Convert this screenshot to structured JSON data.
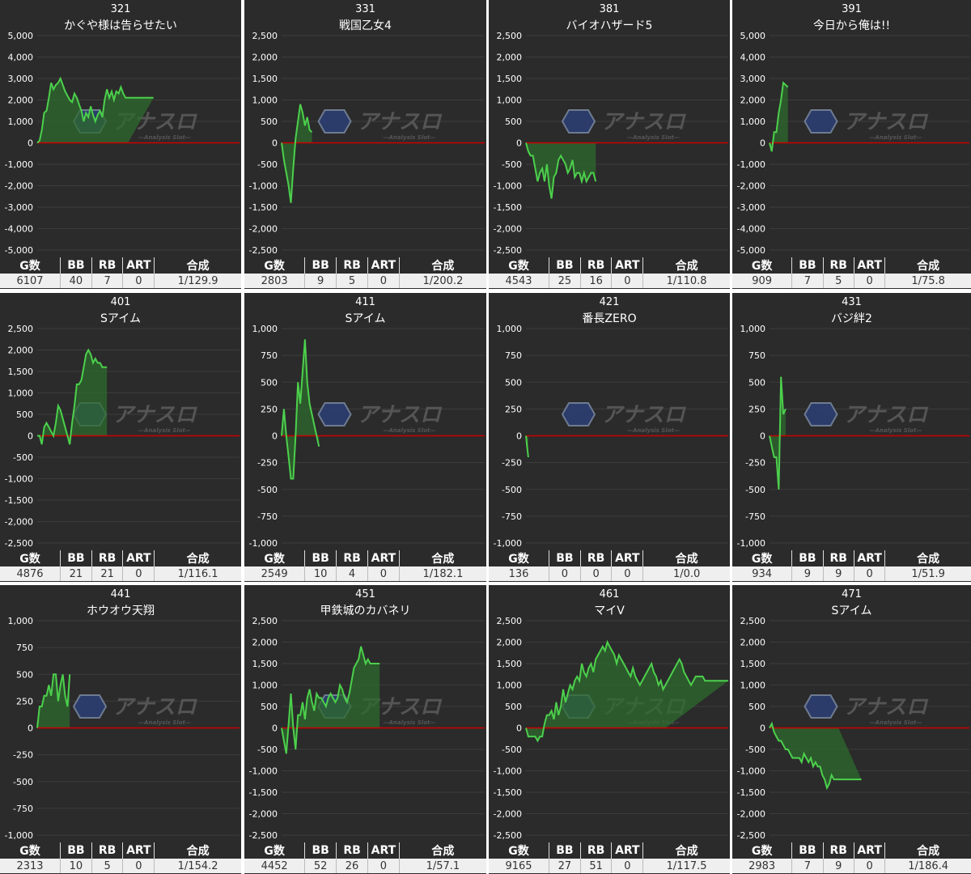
{
  "stat_headers": [
    "G数",
    "BB",
    "RB",
    "ART",
    "合成"
  ],
  "watermark": {
    "main": "アナスロ",
    "sub": "—Analysis Slot—"
  },
  "colors": {
    "panel_bg": "#2b2b2b",
    "line": "#4cd04c",
    "fill": "#2e6b2e",
    "zero_line": "#cc0000",
    "grid": "#3c3c3c"
  },
  "chart_data": [
    {
      "type": "area",
      "number": "321",
      "title": "かぐや様は告らせたい",
      "ylim": [
        -5000,
        5000
      ],
      "yticks": [
        "5,000",
        "4,000",
        "3,000",
        "2,000",
        "1,000",
        "0",
        "-1,000",
        "-2,000",
        "-3,000",
        "-4,000",
        "-5,000"
      ],
      "x": [
        0,
        2,
        4,
        6,
        8,
        10,
        12,
        14,
        16,
        18,
        20,
        22,
        24,
        26,
        28,
        30,
        32,
        34,
        36,
        38,
        40,
        42,
        44,
        46,
        48,
        50,
        52,
        54,
        56,
        58,
        60,
        62,
        64,
        66,
        68,
        70,
        72,
        74,
        76,
        78,
        80,
        82,
        84,
        86,
        88,
        90,
        92,
        94,
        96,
        98,
        100
      ],
      "values": [
        0,
        100,
        600,
        1400,
        1500,
        2100,
        2800,
        2500,
        2700,
        2800,
        3000,
        2700,
        2400,
        2200,
        2000,
        1900,
        2300,
        2100,
        1800,
        1500,
        1000,
        1400,
        1200,
        1700,
        1300,
        1000,
        1300,
        1500,
        1200,
        2000,
        2500,
        2100,
        2400,
        2000,
        2400,
        2300,
        2600,
        2300,
        2100,
        2100,
        2100,
        2100,
        2100,
        2100,
        2100,
        2100,
        2100,
        2100,
        2100,
        2100,
        2100
      ],
      "end_x": 78,
      "stats": {
        "games": "6107",
        "bb": "40",
        "rb": "7",
        "art": "0",
        "combined": "1/129.9"
      }
    },
    {
      "type": "area",
      "number": "331",
      "title": "戦国乙女4",
      "ylim": [
        -2500,
        2500
      ],
      "yticks": [
        "2,500",
        "2,000",
        "1,500",
        "1,000",
        "500",
        "0",
        "-500",
        "-1,000",
        "-1,500",
        "-2,000",
        "-2,500"
      ],
      "x": [
        0,
        2,
        4,
        6,
        8,
        10,
        12,
        14,
        16,
        18,
        20,
        22,
        24,
        26
      ],
      "values": [
        0,
        -400,
        -700,
        -1000,
        -1400,
        -600,
        100,
        500,
        900,
        700,
        400,
        600,
        300,
        250
      ],
      "end_x": 26,
      "stats": {
        "games": "2803",
        "bb": "9",
        "rb": "5",
        "art": "0",
        "combined": "1/200.2"
      }
    },
    {
      "type": "area",
      "number": "381",
      "title": "バイオハザード5",
      "ylim": [
        -2500,
        2500
      ],
      "yticks": [
        "2,500",
        "2,000",
        "1,500",
        "1,000",
        "500",
        "0",
        "-500",
        "-1,000",
        "-1,500",
        "-2,000",
        "-2,500"
      ],
      "x": [
        0,
        2,
        4,
        6,
        8,
        10,
        12,
        14,
        16,
        18,
        20,
        22,
        24,
        26,
        28,
        30,
        32,
        34,
        36,
        38,
        40,
        42,
        44,
        46,
        48,
        50,
        52,
        54,
        56,
        58,
        60
      ],
      "values": [
        0,
        -200,
        -300,
        -300,
        -600,
        -900,
        -700,
        -600,
        -900,
        -500,
        -1000,
        -1300,
        -800,
        -700,
        -400,
        -300,
        -400,
        -500,
        -700,
        -600,
        -400,
        -800,
        -700,
        -700,
        -900,
        -700,
        -900,
        -800,
        -700,
        -700,
        -900
      ],
      "end_x": 60,
      "stats": {
        "games": "4543",
        "bb": "25",
        "rb": "16",
        "art": "0",
        "combined": "1/110.8"
      }
    },
    {
      "type": "area",
      "number": "391",
      "title": "今日から俺は!!",
      "ylim": [
        -5000,
        5000
      ],
      "yticks": [
        "5,000",
        "4,000",
        "3,000",
        "2,000",
        "1,000",
        "0",
        "-1,000",
        "-2,000",
        "-3,000",
        "-4,000",
        "-5,000"
      ],
      "x": [
        0,
        2,
        4,
        6,
        8,
        10,
        12,
        14,
        16
      ],
      "values": [
        0,
        -400,
        500,
        500,
        1400,
        2000,
        2800,
        2700,
        2600
      ],
      "end_x": 16,
      "stats": {
        "games": "909",
        "bb": "7",
        "rb": "5",
        "art": "0",
        "combined": "1/75.8"
      }
    },
    {
      "type": "area",
      "number": "401",
      "title": "Sアイム",
      "ylim": [
        -2500,
        2500
      ],
      "yticks": [
        "2,500",
        "2,000",
        "1,500",
        "1,000",
        "500",
        "0",
        "-500",
        "-1,000",
        "-1,500",
        "-2,000",
        "-2,500"
      ],
      "x": [
        0,
        2,
        4,
        6,
        8,
        10,
        12,
        14,
        16,
        18,
        20,
        22,
        24,
        26,
        28,
        30,
        32,
        34,
        36,
        38,
        40,
        42,
        44,
        46,
        48,
        50,
        52,
        54,
        56,
        58,
        60
      ],
      "values": [
        0,
        0,
        -200,
        200,
        300,
        200,
        100,
        0,
        300,
        700,
        600,
        400,
        200,
        0,
        -200,
        300,
        700,
        1200,
        1200,
        1300,
        1600,
        1900,
        2000,
        1900,
        1700,
        1800,
        1700,
        1700,
        1600,
        1600,
        1600
      ],
      "end_x": 60,
      "stats": {
        "games": "4876",
        "bb": "21",
        "rb": "21",
        "art": "0",
        "combined": "1/116.1"
      }
    },
    {
      "type": "area",
      "number": "411",
      "title": "Sアイム",
      "ylim": [
        -1000,
        1000
      ],
      "yticks": [
        "1,000",
        "750",
        "500",
        "250",
        "0",
        "-250",
        "-500",
        "-750",
        "-1,000"
      ],
      "x": [
        0,
        2,
        4,
        6,
        8,
        10,
        12,
        14,
        16,
        18,
        20,
        22,
        24,
        26,
        28,
        30,
        32
      ],
      "values": [
        0,
        250,
        0,
        -200,
        -400,
        -400,
        0,
        500,
        300,
        600,
        900,
        500,
        300,
        200,
        100,
        0,
        -100
      ],
      "end_x": 32,
      "stats": {
        "games": "2549",
        "bb": "10",
        "rb": "4",
        "art": "0",
        "combined": "1/182.1"
      }
    },
    {
      "type": "area",
      "number": "421",
      "title": "番長ZERO",
      "ylim": [
        -1000,
        1000
      ],
      "yticks": [
        "1,000",
        "750",
        "500",
        "250",
        "0",
        "-250",
        "-500",
        "-750",
        "-1,000"
      ],
      "x": [
        0,
        1,
        2
      ],
      "values": [
        0,
        -100,
        -200
      ],
      "end_x": 2,
      "stats": {
        "games": "136",
        "bb": "0",
        "rb": "0",
        "art": "0",
        "combined": "1/0.0"
      }
    },
    {
      "type": "area",
      "number": "431",
      "title": "バジ絆2",
      "ylim": [
        -1000,
        1000
      ],
      "yticks": [
        "1,000",
        "750",
        "500",
        "250",
        "0",
        "-250",
        "-500",
        "-750",
        "-1,000"
      ],
      "x": [
        0,
        2,
        4,
        6,
        8,
        10,
        12,
        14
      ],
      "values": [
        0,
        -100,
        -200,
        -200,
        -500,
        550,
        200,
        250
      ],
      "end_x": 14,
      "stats": {
        "games": "934",
        "bb": "9",
        "rb": "9",
        "art": "0",
        "combined": "1/51.9"
      }
    },
    {
      "type": "area",
      "number": "441",
      "title": "ホウオウ天翔",
      "ylim": [
        -1000,
        1000
      ],
      "yticks": [
        "1,000",
        "750",
        "500",
        "250",
        "0",
        "-250",
        "-500",
        "-750",
        "-1,000"
      ],
      "x": [
        0,
        2,
        4,
        6,
        8,
        10,
        12,
        14,
        16,
        18,
        20,
        22,
        24,
        26,
        28
      ],
      "values": [
        0,
        200,
        200,
        300,
        300,
        400,
        300,
        500,
        500,
        250,
        400,
        500,
        300,
        200,
        500
      ],
      "end_x": 28,
      "stats": {
        "games": "2313",
        "bb": "10",
        "rb": "5",
        "art": "0",
        "combined": "1/154.2"
      }
    },
    {
      "type": "area",
      "number": "451",
      "title": "甲鉄城のカバネリ",
      "ylim": [
        -2500,
        2500
      ],
      "yticks": [
        "2,500",
        "2,000",
        "1,500",
        "1,000",
        "500",
        "0",
        "-500",
        "-1,000",
        "-1,500",
        "-2,000",
        "-2,500"
      ],
      "x": [
        0,
        2,
        4,
        6,
        8,
        10,
        12,
        14,
        16,
        18,
        20,
        22,
        24,
        26,
        28,
        30,
        32,
        34,
        36,
        38,
        40,
        42,
        44,
        46,
        48,
        50,
        52,
        54,
        56,
        58,
        60,
        62,
        64,
        66,
        68,
        70,
        72,
        74,
        76,
        78,
        80,
        82,
        84
      ],
      "values": [
        0,
        -300,
        -600,
        100,
        800,
        0,
        -500,
        300,
        300,
        600,
        200,
        700,
        900,
        600,
        400,
        800,
        700,
        700,
        600,
        500,
        700,
        800,
        700,
        600,
        700,
        1000,
        900,
        700,
        600,
        800,
        1100,
        1400,
        1500,
        1600,
        1900,
        1700,
        1500,
        1600,
        1500,
        1500,
        1500,
        1500,
        1500
      ],
      "end_x": 84,
      "stats": {
        "games": "4452",
        "bb": "52",
        "rb": "26",
        "art": "0",
        "combined": "1/57.1"
      }
    },
    {
      "type": "area",
      "number": "461",
      "title": "マイV",
      "ylim": [
        -2500,
        2500
      ],
      "yticks": [
        "2,500",
        "2,000",
        "1,500",
        "1,000",
        "500",
        "0",
        "-500",
        "-1,000",
        "-1,500",
        "-2,000",
        "-2,500"
      ],
      "x": [
        0,
        2,
        4,
        6,
        8,
        10,
        12,
        14,
        16,
        18,
        20,
        22,
        24,
        26,
        28,
        30,
        32,
        34,
        36,
        38,
        40,
        42,
        44,
        46,
        48,
        50,
        52,
        54,
        56,
        58,
        60,
        62,
        64,
        66,
        68,
        70,
        72,
        74,
        76,
        78,
        80,
        82,
        84,
        86,
        88,
        90,
        92,
        94,
        96,
        98,
        100,
        102,
        104,
        106,
        108,
        110,
        112,
        114,
        116,
        118,
        120,
        122,
        124,
        126,
        128,
        130,
        132,
        134,
        136,
        138,
        140,
        142,
        144,
        146,
        148,
        150,
        152,
        154,
        156,
        158,
        160,
        162,
        164,
        166,
        168,
        170,
        172,
        174
      ],
      "values": [
        0,
        -200,
        -200,
        -200,
        -200,
        -300,
        -200,
        -200,
        100,
        300,
        300,
        400,
        200,
        600,
        300,
        500,
        900,
        600,
        800,
        1000,
        900,
        1100,
        1200,
        1100,
        1500,
        1300,
        1200,
        1400,
        1500,
        1300,
        1600,
        1700,
        1800,
        1900,
        1800,
        2000,
        1900,
        1800,
        1700,
        1500,
        1700,
        1600,
        1500,
        1400,
        1300,
        1200,
        1400,
        1200,
        1100,
        1000,
        1100,
        1200,
        1300,
        1400,
        1500,
        1300,
        1200,
        1000,
        1100,
        900,
        1000,
        1100,
        1200,
        1300,
        1400,
        1500,
        1600,
        1500,
        1300,
        1200,
        1100,
        1000,
        1100,
        1200,
        1200,
        1200,
        1200,
        1100,
        1100,
        1100,
        1100,
        1100,
        1100,
        1100,
        1100,
        1100,
        1100,
        1100
      ],
      "end_x": 120,
      "stats": {
        "games": "9165",
        "bb": "27",
        "rb": "51",
        "art": "0",
        "combined": "1/117.5"
      }
    },
    {
      "type": "area",
      "number": "471",
      "title": "Sアイム",
      "ylim": [
        -2500,
        2500
      ],
      "yticks": [
        "2,500",
        "2,000",
        "1,500",
        "1,000",
        "500",
        "0",
        "-500",
        "-1,000",
        "-1,500",
        "-2,000",
        "-2,500"
      ],
      "x": [
        0,
        2,
        4,
        6,
        8,
        10,
        12,
        14,
        16,
        18,
        20,
        22,
        24,
        26,
        28,
        30,
        32,
        34,
        36,
        38,
        40,
        42,
        44,
        46,
        48,
        50,
        52,
        54,
        56,
        58,
        60,
        62,
        64,
        66,
        68,
        70,
        72,
        74,
        76,
        78,
        80
      ],
      "values": [
        0,
        100,
        -100,
        -200,
        -300,
        -300,
        -400,
        -500,
        -500,
        -600,
        -700,
        -700,
        -700,
        -700,
        -800,
        -600,
        -700,
        -800,
        -700,
        -900,
        -800,
        -900,
        -900,
        -1100,
        -1200,
        -1400,
        -1300,
        -1100,
        -1200,
        -1200,
        -1200,
        -1200,
        -1200,
        -1200,
        -1200,
        -1200,
        -1200,
        -1200,
        -1200,
        -1200,
        -1200
      ],
      "end_x": 60,
      "stats": {
        "games": "2983",
        "bb": "7",
        "rb": "9",
        "art": "0",
        "combined": "1/186.4"
      }
    }
  ]
}
